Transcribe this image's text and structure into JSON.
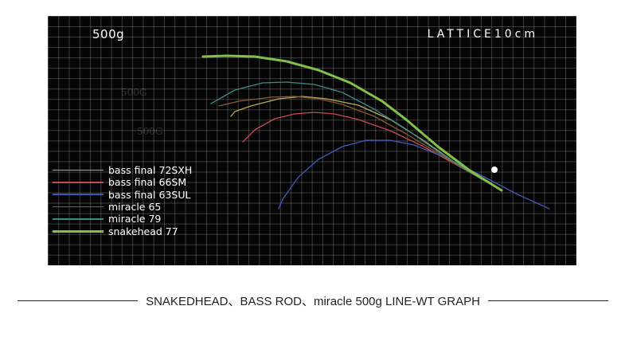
{
  "chart_data": {
    "type": "line",
    "title": "500g",
    "subtitle": "LATTICE10cm",
    "ghost_labels": [
      "500G",
      "500G"
    ],
    "grid": true,
    "legend_placement": "bottom-left",
    "anchor_point": "tip",
    "series": [
      {
        "name": "bass final 72SXH",
        "color": "#b8ad58",
        "width": 1.3,
        "points": [
          [
            630,
            239
          ],
          [
            570,
            203
          ],
          [
            530,
            175
          ],
          [
            490,
            150
          ],
          [
            450,
            132
          ],
          [
            410,
            124
          ],
          [
            380,
            121
          ],
          [
            350,
            124
          ],
          [
            315,
            133
          ],
          [
            295,
            140
          ],
          [
            290,
            146
          ]
        ]
      },
      {
        "name": "bass final 66SM",
        "color": "#c64a55",
        "width": 1.3,
        "points": [
          [
            630,
            239
          ],
          [
            570,
            205
          ],
          [
            530,
            183
          ],
          [
            490,
            164
          ],
          [
            450,
            150
          ],
          [
            420,
            143
          ],
          [
            395,
            141
          ],
          [
            370,
            143
          ],
          [
            345,
            149
          ],
          [
            320,
            163
          ],
          [
            305,
            178
          ]
        ]
      },
      {
        "name": "bass final 63SUL",
        "color": "#4357b8",
        "width": 1.3,
        "points": [
          [
            690,
            262
          ],
          [
            650,
            244
          ],
          [
            610,
            223
          ],
          [
            560,
            198
          ],
          [
            520,
            182
          ],
          [
            490,
            176
          ],
          [
            460,
            176
          ],
          [
            430,
            184
          ],
          [
            400,
            200
          ],
          [
            375,
            222
          ],
          [
            355,
            250
          ],
          [
            350,
            262
          ]
        ]
      },
      {
        "name": "miracle 65",
        "color": "#8a5a2f",
        "width": 1.3,
        "points": [
          [
            630,
            239
          ],
          [
            590,
            216
          ],
          [
            550,
            192
          ],
          [
            510,
            168
          ],
          [
            470,
            146
          ],
          [
            430,
            131
          ],
          [
            400,
            124
          ],
          [
            370,
            121
          ],
          [
            340,
            122
          ],
          [
            300,
            127
          ],
          [
            275,
            133
          ]
        ]
      },
      {
        "name": "miracle 79",
        "color": "#3c8c87",
        "width": 1.3,
        "points": [
          [
            630,
            239
          ],
          [
            590,
            216
          ],
          [
            550,
            190
          ],
          [
            510,
            162
          ],
          [
            470,
            137
          ],
          [
            430,
            116
          ],
          [
            395,
            106
          ],
          [
            360,
            103
          ],
          [
            330,
            104
          ],
          [
            295,
            113
          ],
          [
            265,
            130
          ]
        ]
      },
      {
        "name": "snakehead 77",
        "color": "#7fc14a",
        "width": 3,
        "points": [
          [
            630,
            239
          ],
          [
            590,
            214
          ],
          [
            550,
            184
          ],
          [
            510,
            150
          ],
          [
            480,
            127
          ],
          [
            440,
            104
          ],
          [
            400,
            88
          ],
          [
            360,
            77
          ],
          [
            320,
            71
          ],
          [
            285,
            70
          ],
          [
            255,
            71
          ]
        ]
      }
    ]
  },
  "caption": "SNAKEDHEAD、BASS ROD、miracle 500g LINE-WT GRAPH"
}
